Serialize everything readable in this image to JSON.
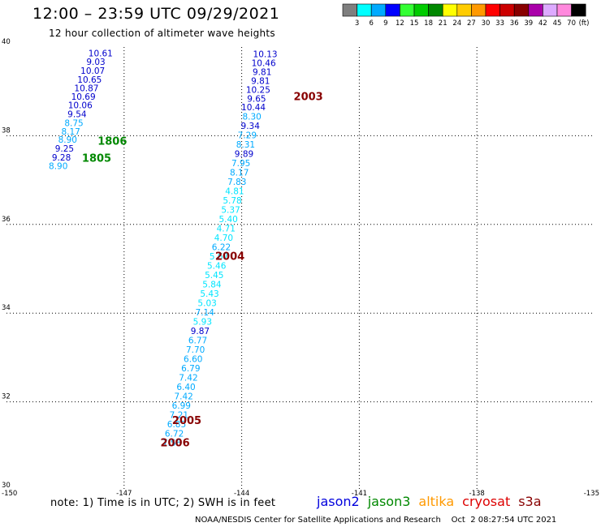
{
  "header": {
    "title": "12:00 – 23:59 UTC 09/29/2021",
    "subtitle": "12 hour collection of altimeter wave heights"
  },
  "color_scale": {
    "labels": [
      "3",
      "6",
      "9",
      "12",
      "15",
      "18",
      "21",
      "24",
      "27",
      "30",
      "33",
      "36",
      "39",
      "42",
      "45",
      "70"
    ],
    "unit": "(ft)",
    "colors": [
      "#7f7f7f",
      "#00ffff",
      "#00aaff",
      "#0000ff",
      "#33ff33",
      "#00cc00",
      "#008800",
      "#ffff00",
      "#ffcc00",
      "#ff9900",
      "#ff0000",
      "#cc0000",
      "#880000",
      "#aa00aa",
      "#ddaaff",
      "#ff88dd",
      "#000000"
    ]
  },
  "chart_data": {
    "type": "scatter",
    "xlim": [
      -150,
      -135
    ],
    "ylim": [
      30,
      40
    ],
    "x_ticks": [
      "-150",
      "-147",
      "-144",
      "-141",
      "-138",
      "-135"
    ],
    "y_ticks": [
      "40",
      "38",
      "36",
      "34",
      "32",
      "30"
    ],
    "grid": true,
    "series": [
      {
        "name": "jason3",
        "color": "#008800",
        "points": [
          {
            "lon": -147.6,
            "lat": 39.79,
            "v": "10.61",
            "c": "#0000cc"
          },
          {
            "lon": -147.72,
            "lat": 39.6,
            "v": "9.03",
            "c": "#0000cc"
          },
          {
            "lon": -147.8,
            "lat": 39.4,
            "v": "10.07",
            "c": "#0000cc"
          },
          {
            "lon": -147.88,
            "lat": 39.2,
            "v": "10.65",
            "c": "#0000cc"
          },
          {
            "lon": -147.96,
            "lat": 39.0,
            "v": "10.87",
            "c": "#0000cc"
          },
          {
            "lon": -148.04,
            "lat": 38.81,
            "v": "10.69",
            "c": "#0000cc"
          },
          {
            "lon": -148.12,
            "lat": 38.62,
            "v": "10.06",
            "c": "#0000cc"
          },
          {
            "lon": -148.2,
            "lat": 38.42,
            "v": "9.54",
            "c": "#0000cc"
          },
          {
            "lon": -148.28,
            "lat": 38.22,
            "v": "8.75",
            "c": "#00aaff"
          },
          {
            "lon": -148.36,
            "lat": 38.03,
            "v": "8.17",
            "c": "#00aaff"
          },
          {
            "lon": -148.44,
            "lat": 37.84,
            "v": "8.90",
            "c": "#00aaff"
          },
          {
            "lon": -148.52,
            "lat": 37.64,
            "v": "9.25",
            "c": "#0000cc"
          },
          {
            "lon": -148.6,
            "lat": 37.44,
            "v": "9.28",
            "c": "#0000cc"
          },
          {
            "lon": -148.68,
            "lat": 37.25,
            "v": "8.90",
            "c": "#00aaff"
          }
        ]
      },
      {
        "name": "cryosat",
        "color": "#880000",
        "points": [
          {
            "lon": -143.4,
            "lat": 39.77,
            "v": "10.13",
            "c": "#0000cc"
          },
          {
            "lon": -143.44,
            "lat": 39.57,
            "v": "10.46",
            "c": "#0000cc"
          },
          {
            "lon": -143.48,
            "lat": 39.37,
            "v": "9.81",
            "c": "#0000cc"
          },
          {
            "lon": -143.52,
            "lat": 39.17,
            "v": "9.81",
            "c": "#0000cc"
          },
          {
            "lon": -143.58,
            "lat": 38.97,
            "v": "10.25",
            "c": "#0000cc"
          },
          {
            "lon": -143.62,
            "lat": 38.77,
            "v": "9.65",
            "c": "#0000cc"
          },
          {
            "lon": -143.7,
            "lat": 38.57,
            "v": "10.44",
            "c": "#0000cc"
          },
          {
            "lon": -143.74,
            "lat": 38.36,
            "v": "8.30",
            "c": "#00aaff"
          },
          {
            "lon": -143.78,
            "lat": 38.15,
            "v": "9.34",
            "c": "#0000cc"
          },
          {
            "lon": -143.86,
            "lat": 37.94,
            "v": "7.29",
            "c": "#00aaff"
          },
          {
            "lon": -143.9,
            "lat": 37.73,
            "v": "8.31",
            "c": "#00aaff"
          },
          {
            "lon": -143.94,
            "lat": 37.52,
            "v": "9.89",
            "c": "#0000cc"
          },
          {
            "lon": -144.02,
            "lat": 37.31,
            "v": "7.95",
            "c": "#00aaff"
          },
          {
            "lon": -144.06,
            "lat": 37.1,
            "v": "8.17",
            "c": "#00aaff"
          },
          {
            "lon": -144.12,
            "lat": 36.89,
            "v": "7.83",
            "c": "#00aaff"
          },
          {
            "lon": -144.18,
            "lat": 36.68,
            "v": "4.81",
            "c": "#00e5ff"
          },
          {
            "lon": -144.24,
            "lat": 36.47,
            "v": "5.78",
            "c": "#00e5ff"
          },
          {
            "lon": -144.28,
            "lat": 36.26,
            "v": "5.37",
            "c": "#00e5ff"
          },
          {
            "lon": -144.34,
            "lat": 36.05,
            "v": "5.40",
            "c": "#00e5ff"
          },
          {
            "lon": -144.4,
            "lat": 35.84,
            "v": "4.71",
            "c": "#00e5ff"
          },
          {
            "lon": -144.46,
            "lat": 35.63,
            "v": "4.70",
            "c": "#00e5ff"
          },
          {
            "lon": -144.52,
            "lat": 35.42,
            "v": "6.22",
            "c": "#00aaff"
          },
          {
            "lon": -144.58,
            "lat": 35.21,
            "v": "5.67",
            "c": "#00e5ff"
          },
          {
            "lon": -144.64,
            "lat": 35.0,
            "v": "5.46",
            "c": "#00e5ff"
          },
          {
            "lon": -144.7,
            "lat": 34.79,
            "v": "5.45",
            "c": "#00e5ff"
          },
          {
            "lon": -144.76,
            "lat": 34.58,
            "v": "5.84",
            "c": "#00e5ff"
          },
          {
            "lon": -144.82,
            "lat": 34.37,
            "v": "5.43",
            "c": "#00e5ff"
          },
          {
            "lon": -144.88,
            "lat": 34.16,
            "v": "5.03",
            "c": "#00e5ff"
          },
          {
            "lon": -144.94,
            "lat": 33.95,
            "v": "7.14",
            "c": "#00aaff"
          },
          {
            "lon": -145.0,
            "lat": 33.74,
            "v": "5.93",
            "c": "#00e5ff"
          },
          {
            "lon": -145.06,
            "lat": 33.53,
            "v": "9.87",
            "c": "#0000cc"
          },
          {
            "lon": -145.12,
            "lat": 33.32,
            "v": "6.77",
            "c": "#00aaff"
          },
          {
            "lon": -145.18,
            "lat": 33.11,
            "v": "7.70",
            "c": "#00aaff"
          },
          {
            "lon": -145.24,
            "lat": 32.9,
            "v": "6.60",
            "c": "#00aaff"
          },
          {
            "lon": -145.3,
            "lat": 32.69,
            "v": "6.79",
            "c": "#00aaff"
          },
          {
            "lon": -145.36,
            "lat": 32.48,
            "v": "7.42",
            "c": "#00aaff"
          },
          {
            "lon": -145.42,
            "lat": 32.27,
            "v": "6.40",
            "c": "#00aaff"
          },
          {
            "lon": -145.48,
            "lat": 32.06,
            "v": "7.42",
            "c": "#00aaff"
          },
          {
            "lon": -145.54,
            "lat": 31.85,
            "v": "6.99",
            "c": "#00aaff"
          },
          {
            "lon": -145.6,
            "lat": 31.64,
            "v": "7.21",
            "c": "#00aaff"
          },
          {
            "lon": -145.66,
            "lat": 31.43,
            "v": "6.85",
            "c": "#00aaff"
          },
          {
            "lon": -145.72,
            "lat": 31.22,
            "v": "6.72",
            "c": "#00aaff"
          },
          {
            "lon": -145.78,
            "lat": 31.01,
            "v": "7.56",
            "c": "#00aaff"
          }
        ]
      }
    ],
    "pass_labels": [
      {
        "text": "1806",
        "lon": -147.3,
        "lat": 37.8,
        "color": "#008800"
      },
      {
        "text": "1805",
        "lon": -147.7,
        "lat": 37.41,
        "color": "#008800"
      },
      {
        "text": "2003",
        "lon": -142.3,
        "lat": 38.8,
        "color": "#880000"
      },
      {
        "text": "2004",
        "lon": -144.3,
        "lat": 35.2,
        "color": "#880000"
      },
      {
        "text": "2005",
        "lon": -145.4,
        "lat": 31.5,
        "color": "#880000"
      },
      {
        "text": "2006",
        "lon": -145.7,
        "lat": 31.0,
        "color": "#880000"
      }
    ]
  },
  "footer": {
    "note": "note:  1) Time is in UTC;  2) SWH is in feet",
    "satellites": [
      {
        "name": "jason2",
        "color": "#0000dd"
      },
      {
        "name": "jason3",
        "color": "#008800"
      },
      {
        "name": "altika",
        "color": "#ff9900"
      },
      {
        "name": "cryosat",
        "color": "#dd0000"
      },
      {
        "name": "s3a",
        "color": "#880000"
      }
    ],
    "credit": "NOAA/NESDIS Center for Satellite Applications and Research    Oct  2 08:27:54 UTC 2021"
  }
}
